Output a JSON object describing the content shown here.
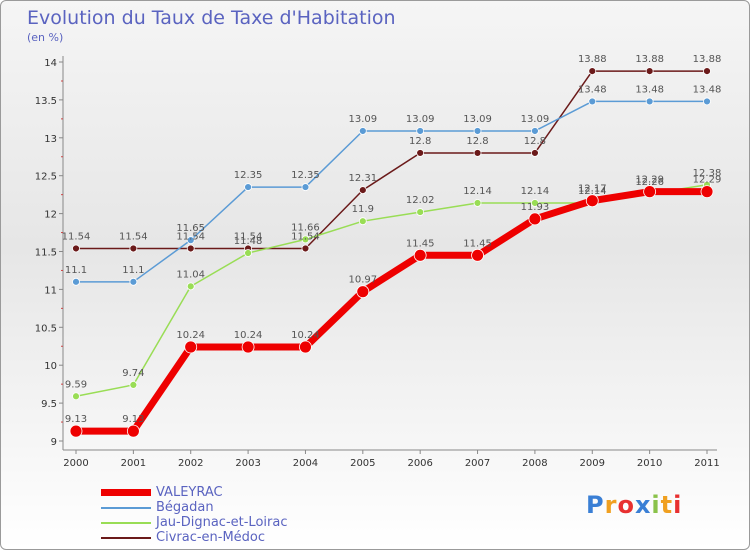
{
  "chart_data": {
    "type": "line",
    "title": "Evolution du Taux de Taxe d'Habitation",
    "subtitle": "(en %)",
    "x": [
      "2000",
      "2001",
      "2002",
      "2003",
      "2004",
      "2005",
      "2006",
      "2007",
      "2008",
      "2009",
      "2010",
      "2011"
    ],
    "ylim": [
      9,
      14
    ],
    "yticks": [
      "9",
      "9.5",
      "10",
      "10.5",
      "11",
      "11.5",
      "12",
      "12.5",
      "13",
      "13.5",
      "14"
    ],
    "series": [
      {
        "name": "Civrac-en-Médoc",
        "color": "#6b1a1a",
        "values": [
          11.54,
          11.54,
          11.54,
          11.54,
          11.54,
          12.31,
          12.8,
          12.8,
          12.8,
          13.88,
          13.88,
          13.88
        ],
        "labels": [
          "11.54",
          "11.54",
          "11.54",
          "11.54",
          "11.54",
          "12.31",
          "12.8",
          "12.8",
          "12.8",
          "13.88",
          "13.88",
          "13.88"
        ]
      },
      {
        "name": "Bégadan",
        "color": "#5b9bd5",
        "values": [
          11.1,
          11.1,
          11.65,
          12.35,
          12.35,
          13.09,
          13.09,
          13.09,
          13.09,
          13.48,
          13.48,
          13.48
        ],
        "labels": [
          "11.1",
          "11.1",
          "11.65",
          "12.35",
          "12.35",
          "13.09",
          "13.09",
          "13.09",
          "13.09",
          "13.48",
          "13.48",
          "13.48"
        ]
      },
      {
        "name": "Jau-Dignac-et-Loirac",
        "color": "#99dd55",
        "values": [
          9.59,
          9.74,
          11.04,
          11.48,
          11.66,
          11.9,
          12.02,
          12.14,
          12.14,
          12.14,
          12.26,
          12.38
        ],
        "labels": [
          "9.59",
          "9.74",
          "11.04",
          "11.48",
          "11.66",
          "11.9",
          "12.02",
          "12.14",
          "12.14",
          "12.14",
          "12.26",
          "12.38"
        ]
      },
      {
        "name": "VALEYRAC",
        "color": "#ee0000",
        "values": [
          9.13,
          9.13,
          10.24,
          10.24,
          10.24,
          10.97,
          11.45,
          11.45,
          11.93,
          12.17,
          12.29,
          12.29
        ],
        "labels": [
          "9.13",
          "9.13",
          "10.24",
          "10.24",
          "10.24",
          "10.97",
          "11.45",
          "11.45",
          "11.93",
          "12.17",
          "12.29",
          "12.29"
        ]
      }
    ],
    "legend": [
      "VALEYRAC",
      "Bégadan",
      "Jau-Dignac-et-Loirac",
      "Civrac-en-Médoc"
    ],
    "legend_colors": [
      "#ee0000",
      "#5b9bd5",
      "#99dd55",
      "#6b1a1a"
    ]
  },
  "logo": {
    "letters": [
      "P",
      "r",
      "o",
      "x",
      "i",
      "t",
      "i"
    ],
    "colors": [
      "#3a7fd5",
      "#f0a020",
      "#e83030",
      "#3a7fd5",
      "#8ac24a",
      "#f0a020",
      "#e83030"
    ]
  }
}
